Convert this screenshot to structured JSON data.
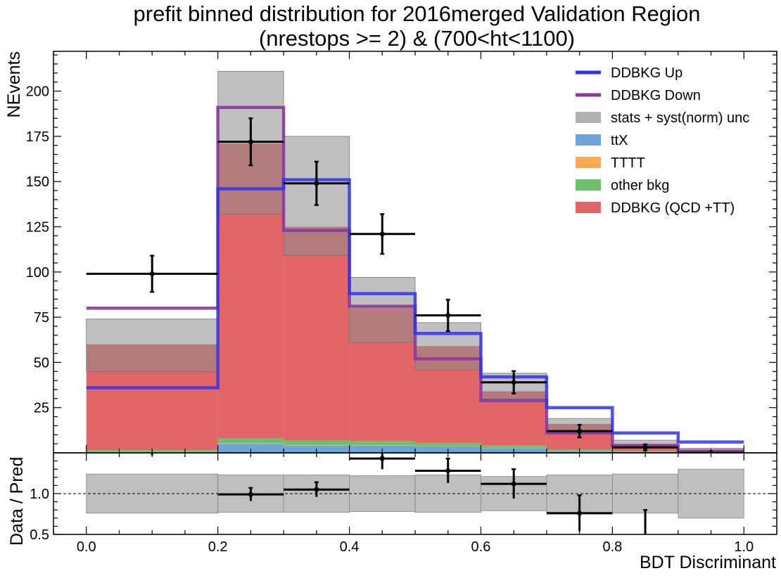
{
  "chart_data": {
    "type": "bar",
    "title": "prefit binned distribution for 2016merged Validation Region",
    "subtitle": "(nrestops >= 2) & (700<ht<1100)",
    "xlabel": "BDT Discriminant",
    "ylabel": "NEvents",
    "ratio_ylabel": "Data / Pred",
    "xlim": [
      -0.05,
      1.05
    ],
    "ylim": [
      0,
      222
    ],
    "ratio_ylim": [
      0.5,
      1.5
    ],
    "x_ticks": [
      "0.0",
      "0.2",
      "0.4",
      "0.6",
      "0.8",
      "1.0"
    ],
    "y_ticks": [
      "25",
      "50",
      "75",
      "100",
      "125",
      "150",
      "175",
      "200"
    ],
    "ratio_y_ticks": [
      "0.5",
      "1.0"
    ],
    "bin_edges": [
      0.0,
      0.2,
      0.3,
      0.4,
      0.5,
      0.6,
      0.7,
      0.8,
      0.9,
      1.0
    ],
    "legend_position": "top-right",
    "legend": [
      {
        "label": "DDBKG Up",
        "kind": "line",
        "color": "#3333ee"
      },
      {
        "label": "DDBKG Down",
        "kind": "line",
        "color": "#8a3a9e"
      },
      {
        "label": "stats + syst(norm) unc",
        "kind": "patch",
        "color": "#a9a9a9"
      },
      {
        "label": "ttX",
        "kind": "patch",
        "color": "#5b9bd5"
      },
      {
        "label": "TTTT",
        "kind": "patch",
        "color": "#ffa040"
      },
      {
        "label": "other bkg",
        "kind": "patch",
        "color": "#5cb85c"
      },
      {
        "label": "DDBKG (QCD +TT)",
        "kind": "patch",
        "color": "#e05555"
      }
    ],
    "stack": [
      {
        "name": "ttX",
        "color": "#5b9bd5",
        "values": [
          0.4,
          5.0,
          4.0,
          4.0,
          3.5,
          2.5,
          1.0,
          0.5,
          0.2
        ]
      },
      {
        "name": "TTTT",
        "color": "#ffa040",
        "values": [
          0.1,
          0.3,
          0.3,
          0.2,
          0.2,
          0.1,
          0.1,
          0.1,
          0.0
        ]
      },
      {
        "name": "other bkg",
        "color": "#5cb85c",
        "values": [
          1.0,
          2.7,
          2.7,
          2.3,
          1.8,
          1.4,
          0.6,
          0.4,
          0.2
        ]
      },
      {
        "name": "DDBKG (QCD +TT)",
        "color": "#e05555",
        "values": [
          58.5,
          163.0,
          118.0,
          73.5,
          53.5,
          30.0,
          14.3,
          4.0,
          0.8
        ]
      }
    ],
    "uncertainty": {
      "low": [
        45,
        132,
        109,
        61,
        46,
        28,
        12,
        4,
        0.8
      ],
      "high": [
        74,
        211,
        175,
        97,
        72,
        44,
        19,
        7,
        2.5
      ]
    },
    "ddbkg_up": [
      36,
      146,
      151,
      88,
      66,
      42,
      25,
      11,
      6
    ],
    "ddbkg_down": [
      80,
      191,
      123,
      81,
      52,
      29,
      11,
      4,
      1
    ],
    "data": {
      "x": [
        0.1,
        0.25,
        0.35,
        0.45,
        0.55,
        0.65,
        0.75,
        0.85,
        0.95
      ],
      "y": [
        99,
        172,
        149,
        121,
        76,
        39,
        12,
        3,
        0
      ],
      "yerr": [
        10,
        13,
        12,
        11,
        8.7,
        6.2,
        3.5,
        1.7,
        0
      ],
      "xerr": [
        0.1,
        0.05,
        0.05,
        0.05,
        0.05,
        0.05,
        0.05,
        0.05,
        0.05
      ]
    },
    "ratio": {
      "values": [
        1.64,
        0.99,
        1.05,
        1.43,
        1.28,
        1.12,
        0.76,
        0.46,
        null
      ],
      "errors": [
        0.17,
        0.08,
        0.09,
        0.13,
        0.15,
        0.18,
        0.22,
        0.34,
        null
      ],
      "unc_low": [
        0.76,
        0.77,
        0.77,
        0.78,
        0.77,
        0.79,
        0.77,
        0.76,
        0.7
      ],
      "unc_high": [
        1.24,
        1.23,
        1.23,
        1.22,
        1.23,
        1.21,
        1.23,
        1.24,
        1.3
      ]
    }
  }
}
